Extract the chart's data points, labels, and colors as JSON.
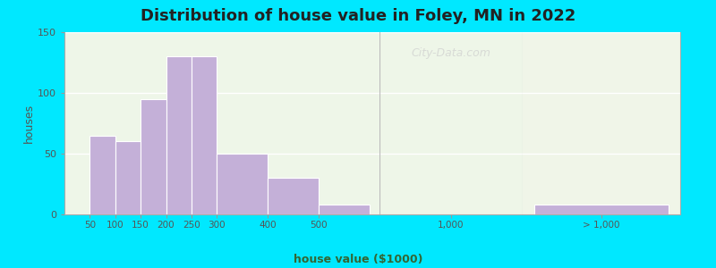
{
  "title": "Distribution of house value in Foley, MN in 2022",
  "xlabel": "house value ($1000)",
  "ylabel": "houses",
  "bar_color": "#c4b0d8",
  "background_outer": "#00e8ff",
  "background_inner": "#eef6e8",
  "background_right": "#f0f5e8",
  "ylim": [
    0,
    150
  ],
  "yticks": [
    0,
    50,
    100,
    150
  ],
  "bar_lefts": [
    50,
    100,
    150,
    200,
    250,
    300,
    400,
    500
  ],
  "bar_widths": [
    50,
    50,
    50,
    50,
    50,
    100,
    100,
    100
  ],
  "bar_heights": [
    65,
    60,
    95,
    130,
    130,
    50,
    30,
    8
  ],
  "xtick_positions": [
    50,
    100,
    150,
    200,
    250,
    300,
    400,
    500
  ],
  "xtick_labels": [
    "50",
    "100",
    "150",
    "200",
    "250",
    "300",
    "400",
    "500"
  ],
  "mid_label": "1,000",
  "right_label": "> 1,000",
  "right_bar_height": 8,
  "watermark": "City-Data.com",
  "title_fontsize": 13,
  "axis_label_fontsize": 9,
  "tick_fontsize": 7.5
}
